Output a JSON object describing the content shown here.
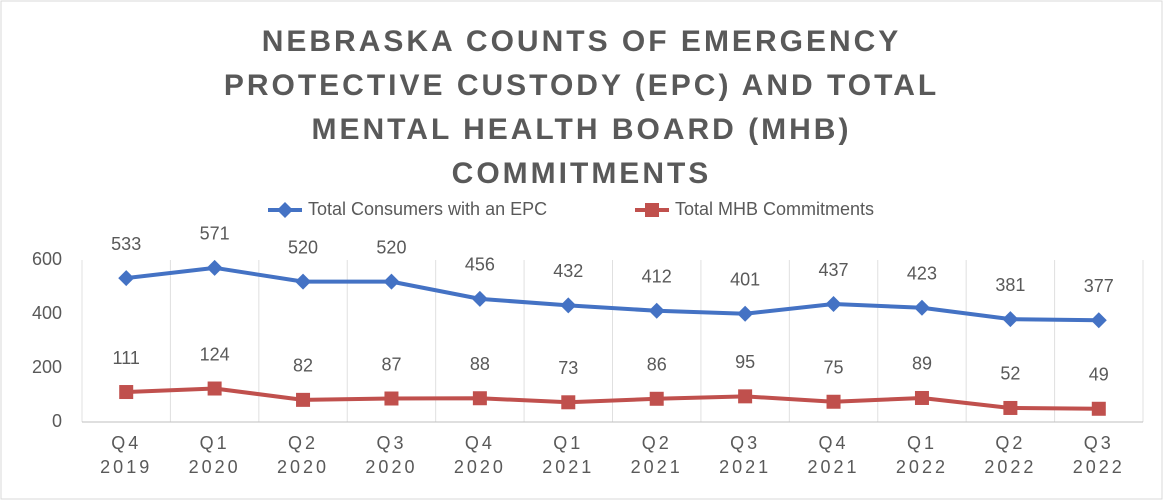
{
  "chart_data": {
    "type": "line",
    "title": "NEBRASKA COUNTS OF EMERGENCY PROTECTIVE CUSTODY (EPC) AND TOTAL MENTAL HEALTH BOARD (MHB) COMMITMENTS",
    "categories": [
      [
        "Q4",
        "2019"
      ],
      [
        "Q1",
        "2020"
      ],
      [
        "Q2",
        "2020"
      ],
      [
        "Q3",
        "2020"
      ],
      [
        "Q4",
        "2020"
      ],
      [
        "Q1",
        "2021"
      ],
      [
        "Q2",
        "2021"
      ],
      [
        "Q3",
        "2021"
      ],
      [
        "Q4",
        "2021"
      ],
      [
        "Q1",
        "2022"
      ],
      [
        "Q2",
        "2022"
      ],
      [
        "Q3",
        "2022"
      ]
    ],
    "series": [
      {
        "name": "Total Consumers with an EPC",
        "color": "#4472c4",
        "marker": "diamond",
        "values": [
          533,
          571,
          520,
          520,
          456,
          432,
          412,
          401,
          437,
          423,
          381,
          377
        ]
      },
      {
        "name": "Total MHB Commitments",
        "color": "#c0504d",
        "marker": "square",
        "values": [
          111,
          124,
          82,
          87,
          88,
          73,
          86,
          95,
          75,
          89,
          52,
          49
        ]
      }
    ],
    "ylim": [
      0,
      600
    ],
    "yticks": [
      0,
      200,
      400,
      600
    ],
    "grid": true,
    "legend": "top"
  }
}
